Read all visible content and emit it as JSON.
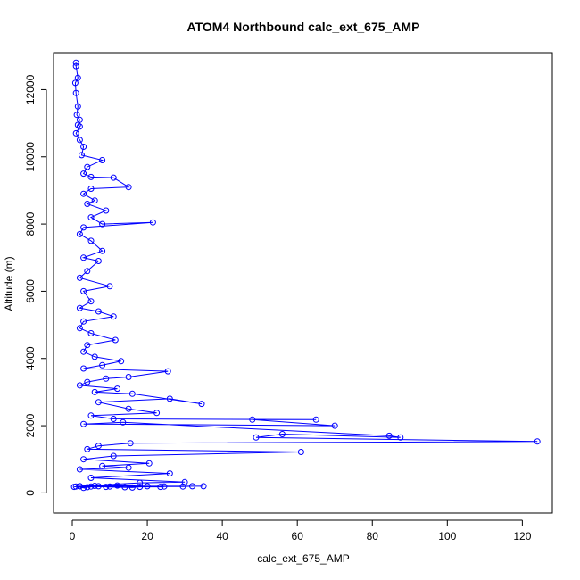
{
  "chart_data": {
    "type": "line",
    "title": "ATOM4 Northbound calc_ext_675_AMP",
    "xlabel": "calc_ext_675_AMP",
    "ylabel": "Altitude (m)",
    "xlim": [
      -5,
      128
    ],
    "ylim": [
      -600,
      13100
    ],
    "xticks": [
      0,
      20,
      40,
      60,
      80,
      100,
      120
    ],
    "yticks": [
      0,
      2000,
      4000,
      6000,
      8000,
      10000,
      12000
    ],
    "grid": false,
    "marker": "open-circle",
    "colors": {
      "series": "#0000ff",
      "axis": "#000000"
    },
    "series": [
      {
        "values_note": "",
        "points": [
          [
            1,
            12800
          ],
          [
            1,
            12700
          ],
          [
            1.5,
            12350
          ],
          [
            0.8,
            12200
          ],
          [
            1,
            11900
          ],
          [
            1.5,
            11500
          ],
          [
            1.2,
            11250
          ],
          [
            2,
            11100
          ],
          [
            1.5,
            10950
          ],
          [
            2,
            10900
          ],
          [
            1,
            10700
          ],
          [
            2,
            10500
          ],
          [
            3,
            10300
          ],
          [
            2.5,
            10050
          ],
          [
            8,
            9900
          ],
          [
            4,
            9700
          ],
          [
            3,
            9500
          ],
          [
            5,
            9400
          ],
          [
            11,
            9380
          ],
          [
            15,
            9100
          ],
          [
            5,
            9050
          ],
          [
            3,
            8900
          ],
          [
            6,
            8700
          ],
          [
            4,
            8600
          ],
          [
            9,
            8400
          ],
          [
            5,
            8200
          ],
          [
            8,
            8000
          ],
          [
            21.5,
            8050
          ],
          [
            3,
            7900
          ],
          [
            2,
            7700
          ],
          [
            5,
            7500
          ],
          [
            8,
            7200
          ],
          [
            3,
            7000
          ],
          [
            7,
            6900
          ],
          [
            4,
            6600
          ],
          [
            2,
            6400
          ],
          [
            10,
            6150
          ],
          [
            3,
            6000
          ],
          [
            5,
            5700
          ],
          [
            2,
            5500
          ],
          [
            7,
            5400
          ],
          [
            11,
            5250
          ],
          [
            3,
            5100
          ],
          [
            2,
            4900
          ],
          [
            5,
            4750
          ],
          [
            11.5,
            4550
          ],
          [
            4,
            4400
          ],
          [
            3,
            4200
          ],
          [
            6,
            4050
          ],
          [
            13,
            3920
          ],
          [
            8,
            3800
          ],
          [
            3,
            3700
          ],
          [
            25.5,
            3620
          ],
          [
            15,
            3450
          ],
          [
            9,
            3400
          ],
          [
            4,
            3300
          ],
          [
            2,
            3200
          ],
          [
            12,
            3100
          ],
          [
            6,
            3000
          ],
          [
            16,
            2950
          ],
          [
            34.5,
            2650
          ],
          [
            26,
            2800
          ],
          [
            7,
            2700
          ],
          [
            15,
            2500
          ],
          [
            22.5,
            2380
          ],
          [
            5,
            2300
          ],
          [
            11,
            2200
          ],
          [
            65,
            2180
          ],
          [
            48,
            2180
          ],
          [
            70,
            2000
          ],
          [
            3,
            2050
          ],
          [
            13.5,
            2100
          ],
          [
            84.5,
            1700
          ],
          [
            87.5,
            1650
          ],
          [
            56,
            1750
          ],
          [
            49,
            1650
          ],
          [
            124,
            1530
          ],
          [
            15.5,
            1480
          ],
          [
            7,
            1400
          ],
          [
            4,
            1300
          ],
          [
            61,
            1220
          ],
          [
            11,
            1100
          ],
          [
            3,
            1000
          ],
          [
            20.5,
            880
          ],
          [
            8,
            800
          ],
          [
            15,
            750
          ],
          [
            2,
            700
          ],
          [
            26,
            580
          ],
          [
            5,
            450
          ],
          [
            30,
            320
          ],
          [
            18,
            300
          ],
          [
            2,
            200
          ],
          [
            35,
            200
          ],
          [
            32,
            200
          ],
          [
            29.5,
            190
          ],
          [
            24.5,
            190
          ],
          [
            23.5,
            180
          ],
          [
            18,
            180
          ],
          [
            14,
            170
          ],
          [
            10,
            190
          ],
          [
            7,
            200
          ],
          [
            4,
            170
          ],
          [
            1,
            190
          ],
          [
            3,
            150
          ],
          [
            6,
            210
          ],
          [
            12,
            220
          ],
          [
            20,
            200
          ],
          [
            16,
            160
          ],
          [
            9,
            180
          ],
          [
            5,
            190
          ],
          [
            2,
            200
          ],
          [
            0.5,
            180
          ]
        ]
      }
    ]
  }
}
